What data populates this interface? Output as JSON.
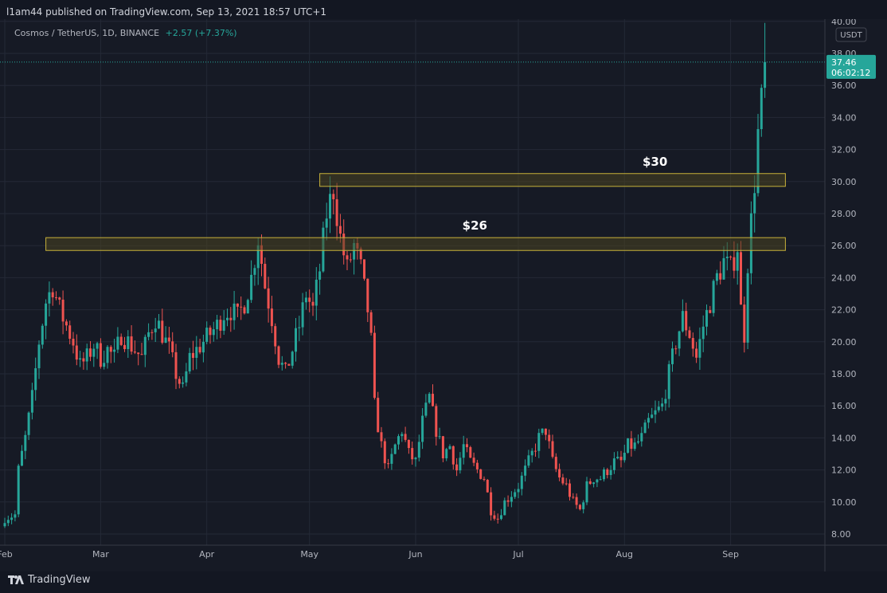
{
  "header": {
    "publisher_text": "l1am44 published on TradingView.com, Sep 13, 2021 18:57 UTC+1"
  },
  "legend": {
    "symbol": "Cosmos / TetherUS, 1D, BINANCE",
    "change": "+2.57 (+7.37%)"
  },
  "footer": {
    "brand": "TradingView"
  },
  "colors": {
    "up": "#26a69a",
    "down": "#ef5350",
    "zone_fill": "#4a4420",
    "zone_stroke": "#c8b23a",
    "background": "#161a25",
    "grid": "#242936"
  },
  "chart_data": {
    "type": "candlestick",
    "title": "Cosmos / TetherUS, 1D, BINANCE",
    "currency_badge": "USDT",
    "ylim": [
      8,
      40
    ],
    "y_ticks": [
      "8.00",
      "10.00",
      "12.00",
      "14.00",
      "16.00",
      "18.00",
      "20.00",
      "22.00",
      "24.00",
      "26.00",
      "28.00",
      "30.00",
      "32.00",
      "34.00",
      "36.00",
      "38.00",
      "40.00"
    ],
    "x_ticks": [
      {
        "label": "Feb",
        "day": 0
      },
      {
        "label": "Mar",
        "day": 28
      },
      {
        "label": "Apr",
        "day": 59
      },
      {
        "label": "May",
        "day": 89
      },
      {
        "label": "Jun",
        "day": 120
      },
      {
        "label": "Jul",
        "day": 150
      },
      {
        "label": "Aug",
        "day": 181
      },
      {
        "label": "Sep",
        "day": 212
      }
    ],
    "last_price": {
      "value": 37.46,
      "label": "37.46",
      "countdown": "06:02:12"
    },
    "zones": [
      {
        "label": "$30",
        "low": 29.7,
        "high": 30.5,
        "start_day": 92,
        "end_day": 228
      },
      {
        "label": "$26",
        "low": 25.7,
        "high": 26.5,
        "start_day": 12,
        "end_day": 228
      }
    ],
    "anchors": [
      [
        0,
        9.0
      ],
      [
        3,
        9.2
      ],
      [
        4,
        12.0
      ],
      [
        6,
        14.0
      ],
      [
        8,
        16.5
      ],
      [
        10,
        20.0
      ],
      [
        12,
        22.5
      ],
      [
        14,
        23.5
      ],
      [
        16,
        22.0
      ],
      [
        18,
        21.0
      ],
      [
        20,
        20.0
      ],
      [
        22,
        18.5
      ],
      [
        24,
        19.0
      ],
      [
        26,
        19.8
      ],
      [
        28,
        19.0
      ],
      [
        30,
        19.5
      ],
      [
        32,
        19.0
      ],
      [
        34,
        20.5
      ],
      [
        36,
        20.0
      ],
      [
        38,
        19.5
      ],
      [
        40,
        19.0
      ],
      [
        42,
        20.5
      ],
      [
        44,
        21.5
      ],
      [
        46,
        20.5
      ],
      [
        48,
        19.5
      ],
      [
        50,
        18.0
      ],
      [
        52,
        17.0
      ],
      [
        54,
        19.0
      ],
      [
        56,
        19.5
      ],
      [
        58,
        20.0
      ],
      [
        60,
        20.5
      ],
      [
        62,
        21.0
      ],
      [
        64,
        21.8
      ],
      [
        66,
        22.0
      ],
      [
        68,
        21.5
      ],
      [
        70,
        22.5
      ],
      [
        72,
        24.0
      ],
      [
        74,
        26.5
      ],
      [
        76,
        23.5
      ],
      [
        78,
        21.5
      ],
      [
        80,
        19.0
      ],
      [
        82,
        18.0
      ],
      [
        84,
        19.5
      ],
      [
        86,
        21.0
      ],
      [
        88,
        23.0
      ],
      [
        90,
        22.0
      ],
      [
        92,
        24.5
      ],
      [
        94,
        28.0
      ],
      [
        96,
        29.5
      ],
      [
        98,
        26.5
      ],
      [
        100,
        24.5
      ],
      [
        102,
        26.0
      ],
      [
        104,
        24.5
      ],
      [
        106,
        22.0
      ],
      [
        107,
        20.0
      ],
      [
        108,
        16.0
      ],
      [
        110,
        13.5
      ],
      [
        112,
        12.0
      ],
      [
        114,
        13.5
      ],
      [
        116,
        14.5
      ],
      [
        118,
        13.0
      ],
      [
        120,
        12.5
      ],
      [
        122,
        15.0
      ],
      [
        124,
        16.5
      ],
      [
        126,
        14.5
      ],
      [
        128,
        13.0
      ],
      [
        130,
        13.5
      ],
      [
        132,
        12.0
      ],
      [
        134,
        13.5
      ],
      [
        136,
        12.5
      ],
      [
        138,
        12.0
      ],
      [
        140,
        11.5
      ],
      [
        142,
        9.5
      ],
      [
        144,
        9.0
      ],
      [
        146,
        10.0
      ],
      [
        148,
        10.5
      ],
      [
        150,
        11.0
      ],
      [
        152,
        12.0
      ],
      [
        154,
        13.0
      ],
      [
        156,
        14.0
      ],
      [
        158,
        14.5
      ],
      [
        160,
        12.5
      ],
      [
        162,
        11.5
      ],
      [
        164,
        11.0
      ],
      [
        166,
        10.0
      ],
      [
        168,
        9.5
      ],
      [
        170,
        11.0
      ],
      [
        172,
        11.5
      ],
      [
        174,
        11.5
      ],
      [
        176,
        12.0
      ],
      [
        178,
        12.5
      ],
      [
        180,
        12.5
      ],
      [
        182,
        13.5
      ],
      [
        184,
        13.5
      ],
      [
        186,
        14.0
      ],
      [
        188,
        15.0
      ],
      [
        190,
        15.5
      ],
      [
        192,
        16.0
      ],
      [
        194,
        18.0
      ],
      [
        196,
        20.0
      ],
      [
        198,
        21.5
      ],
      [
        200,
        20.5
      ],
      [
        202,
        19.0
      ],
      [
        204,
        21.0
      ],
      [
        206,
        22.5
      ],
      [
        208,
        24.0
      ],
      [
        210,
        25.0
      ],
      [
        212,
        24.5
      ],
      [
        214,
        26.0
      ],
      [
        215,
        22.0
      ],
      [
        216,
        20.5
      ],
      [
        217,
        25.0
      ],
      [
        218,
        27.5
      ],
      [
        219,
        30.0
      ],
      [
        220,
        33.0
      ],
      [
        221,
        34.9
      ],
      [
        222,
        37.46
      ]
    ]
  }
}
